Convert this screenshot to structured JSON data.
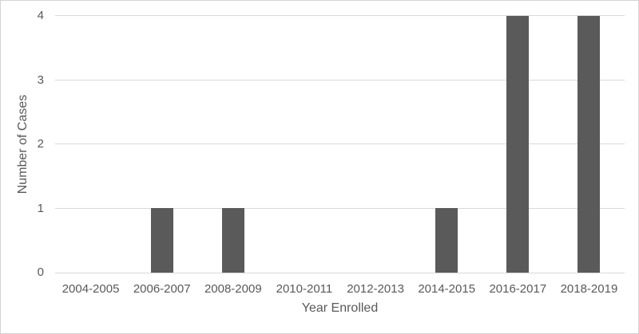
{
  "chart_data": {
    "type": "bar",
    "title": "",
    "categories": [
      "2004-2005",
      "2006-2007",
      "2008-2009",
      "2010-2011",
      "2012-2013",
      "2014-2015",
      "2016-2017",
      "2018-2019"
    ],
    "values": [
      0,
      1,
      1,
      0,
      0,
      1,
      4,
      4
    ],
    "xlabel": "Year Enrolled",
    "ylabel": "Number of Cases",
    "ylim": [
      0,
      4
    ],
    "yticks": [
      0,
      1,
      2,
      3,
      4
    ],
    "grid": "horizontal-major",
    "legend": "none",
    "colors": {
      "bar_fill": "#5a5a5a",
      "gridline": "#d9d9d9",
      "axis_line": "#d9d9d9",
      "tick_label": "#595959",
      "axis_title": "#595959",
      "frame_border": "#d4d4d4",
      "background": "#ffffff"
    }
  }
}
